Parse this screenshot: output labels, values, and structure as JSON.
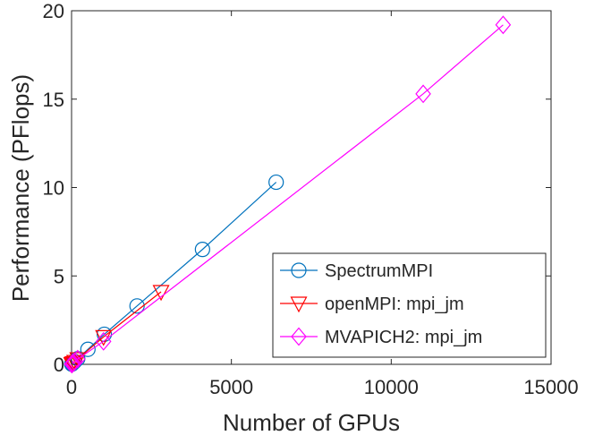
{
  "chart_data": {
    "type": "line",
    "title": "",
    "xlabel": "Number of GPUs",
    "ylabel": "Performance (PFlops)",
    "xlim": [
      0,
      15000
    ],
    "ylim": [
      0,
      20
    ],
    "xticks": [
      0,
      5000,
      10000,
      15000
    ],
    "xtick_labels": [
      "0",
      "5000",
      "10000",
      "15000"
    ],
    "yticks": [
      0,
      5,
      10,
      15,
      20
    ],
    "ytick_labels": [
      "0",
      "5",
      "10",
      "15",
      "20"
    ],
    "grid": false,
    "legend_position": "bottom-right",
    "series": [
      {
        "name": "SpectrumMPI",
        "color": "#0072BD",
        "marker": "circle",
        "x": [
          6,
          12,
          24,
          48,
          96,
          192,
          512,
          1024,
          2048,
          4096,
          6400
        ],
        "y": [
          0.01,
          0.02,
          0.04,
          0.08,
          0.16,
          0.32,
          0.85,
          1.7,
          3.3,
          6.5,
          10.3
        ]
      },
      {
        "name": "openMPI: mpi_jm",
        "color": "#FF0000",
        "marker": "triangle-down",
        "x": [
          6,
          12,
          24,
          48,
          96,
          192,
          1000,
          2800
        ],
        "y": [
          0.01,
          0.02,
          0.04,
          0.08,
          0.15,
          0.3,
          1.55,
          4.1
        ]
      },
      {
        "name": "MVAPICH2: mpi_jm",
        "color": "#FF00FF",
        "marker": "diamond",
        "x": [
          6,
          12,
          24,
          48,
          96,
          192,
          1000,
          11000,
          13500
        ],
        "y": [
          0.01,
          0.02,
          0.04,
          0.08,
          0.15,
          0.3,
          1.3,
          15.3,
          19.2
        ]
      }
    ]
  }
}
